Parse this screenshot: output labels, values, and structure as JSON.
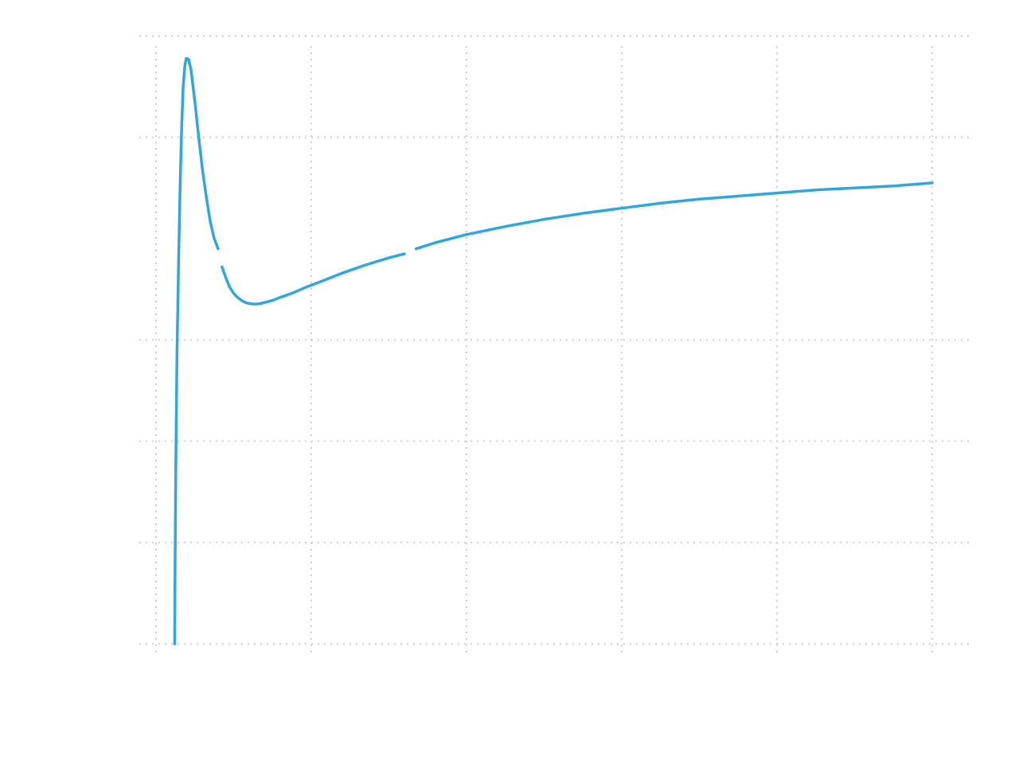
{
  "chart_data": {
    "type": "line",
    "title": "",
    "xlabel": "",
    "ylabel": "",
    "xlim": [
      0,
      10
    ],
    "ylim": [
      -0.1,
      5.9
    ],
    "x_grid": [
      0,
      2,
      4,
      6,
      8,
      10
    ],
    "y_grid": [
      0,
      1,
      2,
      3,
      5,
      6
    ],
    "grid": true,
    "series": [
      {
        "color": "#2fa7dc",
        "segments": [
          {
            "x": [
              0.24,
              0.245,
              0.255,
              0.27,
              0.29,
              0.31,
              0.33,
              0.35,
              0.37,
              0.39,
              0.42,
              0.45,
              0.5,
              0.55,
              0.6,
              0.65,
              0.7,
              0.75,
              0.8
            ],
            "y": [
              0.0,
              0.75,
              1.8,
              2.85,
              3.75,
              4.5,
              5.1,
              5.5,
              5.7,
              5.78,
              5.77,
              5.67,
              5.35,
              5.0,
              4.67,
              4.4,
              4.16,
              4.0,
              3.9
            ]
          },
          {
            "x": [
              0.85,
              0.9,
              0.95,
              1.0,
              1.05,
              1.1,
              1.15,
              1.2,
              1.25,
              1.3,
              1.35,
              1.4,
              1.5,
              1.6,
              1.75,
              1.9,
              2.1,
              2.4,
              2.7,
              3.0,
              3.2
            ],
            "y": [
              3.72,
              3.61,
              3.52,
              3.46,
              3.42,
              3.39,
              3.37,
              3.36,
              3.355,
              3.355,
              3.36,
              3.37,
              3.39,
              3.42,
              3.46,
              3.51,
              3.57,
              3.66,
              3.74,
              3.81,
              3.85
            ]
          },
          {
            "x": [
              3.35,
              3.6,
              4.0,
              4.5,
              5.0,
              5.5,
              6.0,
              6.5,
              7.0,
              7.5,
              8.0,
              8.5,
              9.0,
              9.5,
              10.0
            ],
            "y": [
              3.9,
              3.96,
              4.04,
              4.12,
              4.19,
              4.25,
              4.3,
              4.35,
              4.39,
              4.42,
              4.45,
              4.48,
              4.5,
              4.52,
              4.55
            ]
          }
        ]
      }
    ]
  }
}
